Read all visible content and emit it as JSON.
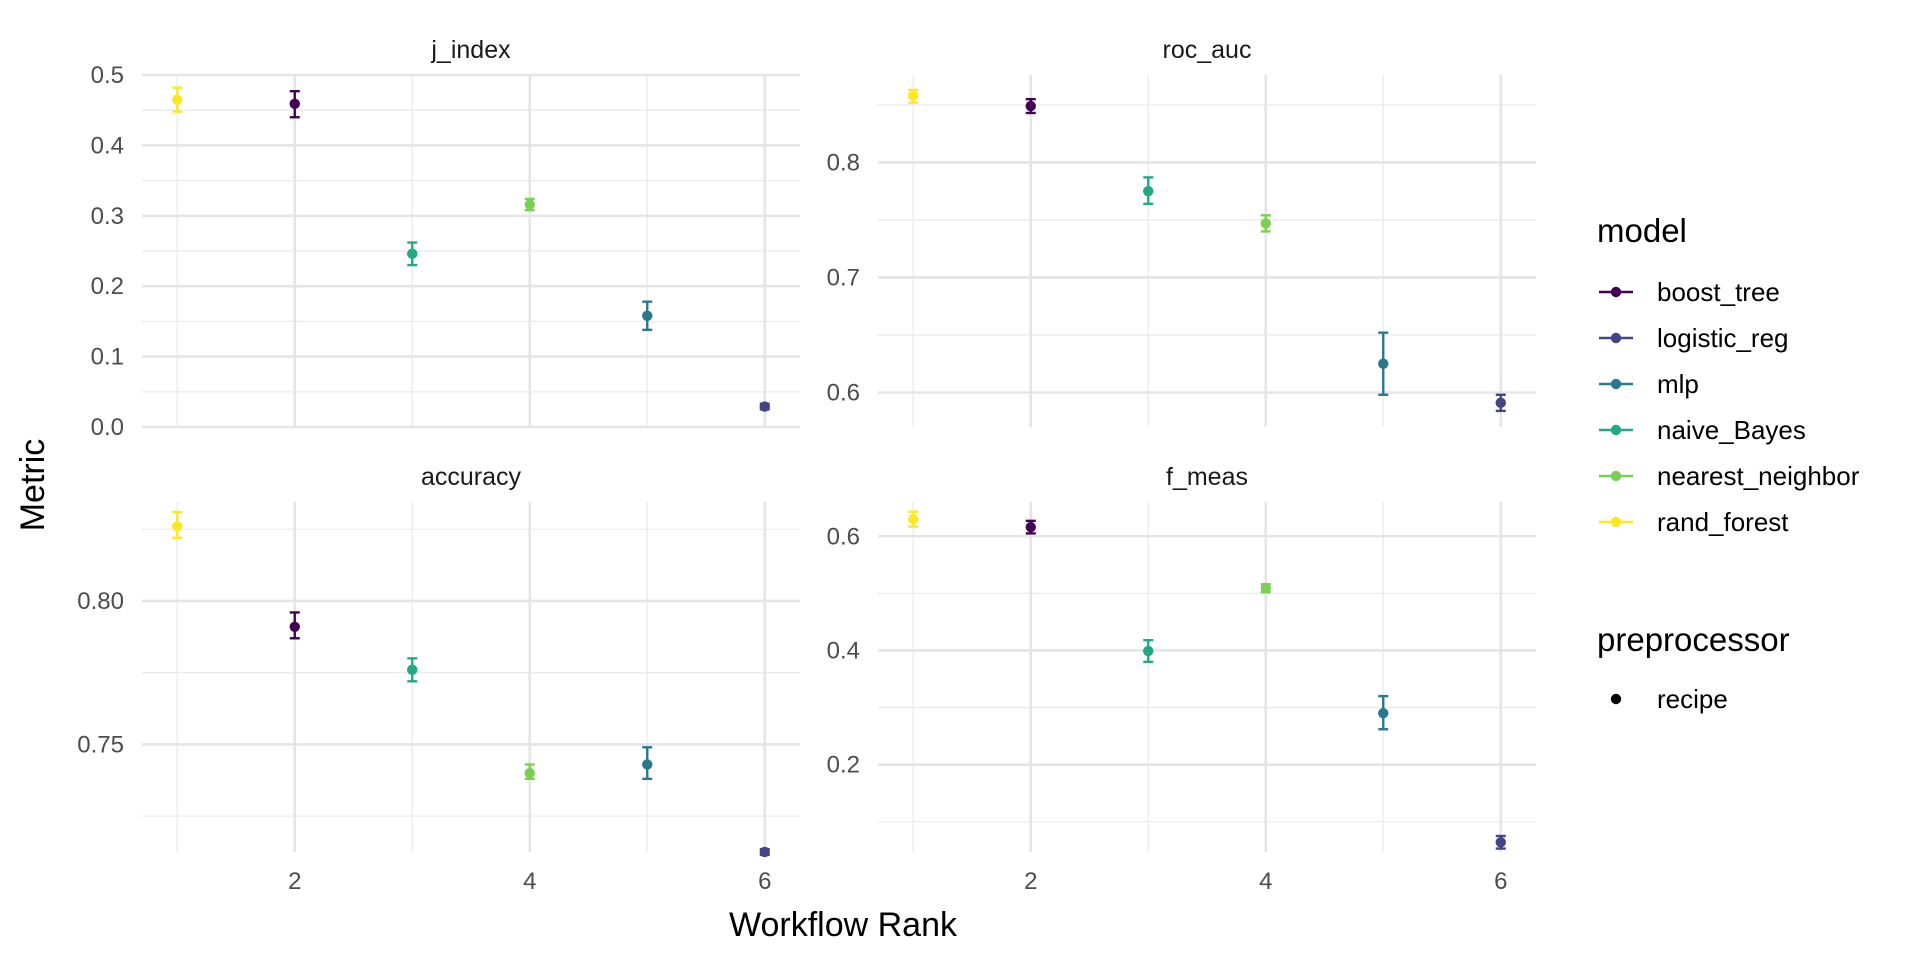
{
  "chart_data": {
    "type": "scatter",
    "xlabel": "Workflow Rank",
    "ylabel": "Metric",
    "x_ticks": [
      2,
      4,
      6
    ],
    "grid": true,
    "legend_placement": "right",
    "legend": {
      "model_title": "model",
      "models": [
        {
          "name": "boost_tree",
          "color": "#440154"
        },
        {
          "name": "logistic_reg",
          "color": "#414487"
        },
        {
          "name": "mlp",
          "color": "#2A788E"
        },
        {
          "name": "naive_Bayes",
          "color": "#22A884"
        },
        {
          "name": "nearest_neighbor",
          "color": "#7AD151"
        },
        {
          "name": "rand_forest",
          "color": "#FDE725"
        }
      ],
      "preprocessor_title": "preprocessor",
      "preprocessors": [
        "recipe"
      ]
    },
    "panels": [
      {
        "title": "j_index",
        "xlim": [
          0.7,
          6.3
        ],
        "ylim": [
          0,
          0.5
        ],
        "y_ticks": [
          0.0,
          0.1,
          0.2,
          0.3,
          0.4,
          0.5
        ],
        "y_tick_labels": [
          "0.0",
          "0.1",
          "0.2",
          "0.3",
          "0.4",
          "0.5"
        ],
        "points": [
          {
            "rank": 1,
            "model": "rand_forest",
            "mean": 0.465,
            "lower": 0.448,
            "upper": 0.482
          },
          {
            "rank": 2,
            "model": "boost_tree",
            "mean": 0.459,
            "lower": 0.44,
            "upper": 0.477
          },
          {
            "rank": 3,
            "model": "naive_Bayes",
            "mean": 0.246,
            "lower": 0.23,
            "upper": 0.262
          },
          {
            "rank": 4,
            "model": "nearest_neighbor",
            "mean": 0.316,
            "lower": 0.308,
            "upper": 0.324
          },
          {
            "rank": 5,
            "model": "mlp",
            "mean": 0.158,
            "lower": 0.138,
            "upper": 0.178
          },
          {
            "rank": 6,
            "model": "logistic_reg",
            "mean": 0.029,
            "lower": 0.025,
            "upper": 0.033
          }
        ]
      },
      {
        "title": "roc_auc",
        "xlim": [
          0.7,
          6.3
        ],
        "ylim": [
          0.57,
          0.876
        ],
        "y_ticks": [
          0.6,
          0.7,
          0.8
        ],
        "y_tick_labels": [
          "0.6",
          "0.7",
          "0.8"
        ],
        "points": [
          {
            "rank": 1,
            "model": "rand_forest",
            "mean": 0.858,
            "lower": 0.852,
            "upper": 0.863
          },
          {
            "rank": 2,
            "model": "boost_tree",
            "mean": 0.849,
            "lower": 0.843,
            "upper": 0.855
          },
          {
            "rank": 3,
            "model": "naive_Bayes",
            "mean": 0.775,
            "lower": 0.764,
            "upper": 0.787
          },
          {
            "rank": 4,
            "model": "nearest_neighbor",
            "mean": 0.747,
            "lower": 0.74,
            "upper": 0.754
          },
          {
            "rank": 5,
            "model": "mlp",
            "mean": 0.625,
            "lower": 0.598,
            "upper": 0.652
          },
          {
            "rank": 6,
            "model": "logistic_reg",
            "mean": 0.591,
            "lower": 0.584,
            "upper": 0.598
          }
        ]
      },
      {
        "title": "accuracy",
        "xlim": [
          0.7,
          6.3
        ],
        "ylim": [
          0.7125,
          0.8345
        ],
        "y_ticks": [
          0.75,
          0.8
        ],
        "y_tick_labels": [
          "0.75",
          "0.80"
        ],
        "points": [
          {
            "rank": 1,
            "model": "rand_forest",
            "mean": 0.826,
            "lower": 0.822,
            "upper": 0.831
          },
          {
            "rank": 2,
            "model": "boost_tree",
            "mean": 0.791,
            "lower": 0.787,
            "upper": 0.796
          },
          {
            "rank": 3,
            "model": "naive_Bayes",
            "mean": 0.776,
            "lower": 0.772,
            "upper": 0.78
          },
          {
            "rank": 4,
            "model": "nearest_neighbor",
            "mean": 0.74,
            "lower": 0.738,
            "upper": 0.743
          },
          {
            "rank": 5,
            "model": "mlp",
            "mean": 0.743,
            "lower": 0.738,
            "upper": 0.749
          },
          {
            "rank": 6,
            "model": "logistic_reg",
            "mean": 0.7125,
            "lower": 0.7115,
            "upper": 0.7135
          }
        ]
      },
      {
        "title": "f_meas",
        "xlim": [
          0.7,
          6.3
        ],
        "ylim": [
          0.047,
          0.66
        ],
        "y_ticks": [
          0.2,
          0.4,
          0.6
        ],
        "y_tick_labels": [
          "0.2",
          "0.4",
          "0.6"
        ],
        "points": [
          {
            "rank": 1,
            "model": "rand_forest",
            "mean": 0.63,
            "lower": 0.617,
            "upper": 0.643
          },
          {
            "rank": 2,
            "model": "boost_tree",
            "mean": 0.616,
            "lower": 0.605,
            "upper": 0.627
          },
          {
            "rank": 3,
            "model": "naive_Bayes",
            "mean": 0.399,
            "lower": 0.38,
            "upper": 0.418
          },
          {
            "rank": 4,
            "model": "nearest_neighbor",
            "mean": 0.509,
            "lower": 0.502,
            "upper": 0.516
          },
          {
            "rank": 5,
            "model": "mlp",
            "mean": 0.29,
            "lower": 0.262,
            "upper": 0.32
          },
          {
            "rank": 6,
            "model": "logistic_reg",
            "mean": 0.064,
            "lower": 0.053,
            "upper": 0.075
          }
        ]
      }
    ]
  }
}
